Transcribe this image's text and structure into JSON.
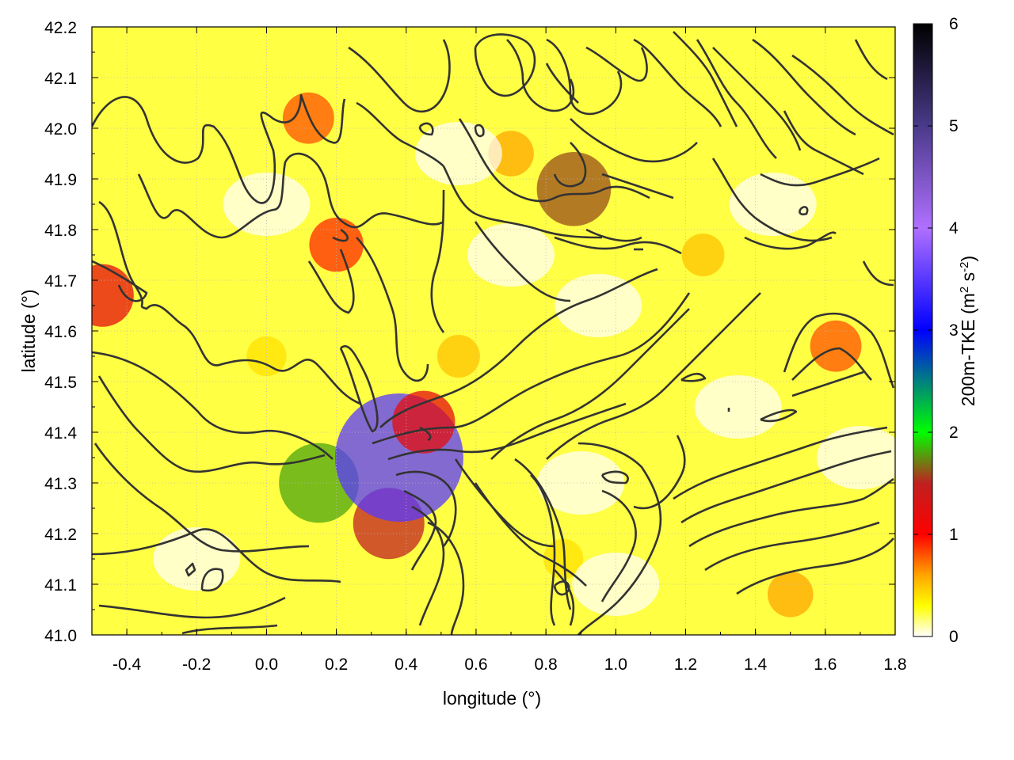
{
  "chart_data": {
    "type": "heatmap",
    "title": "",
    "xlabel": "longitude (°)",
    "ylabel": "latitude (°)",
    "colorbar_label": "200m-TKE (m² s⁻²)",
    "colorbar_label_parts": {
      "base": "200m-TKE (m",
      "sup1": "2",
      "mid": " s",
      "sup2": "-2",
      "end": ")"
    },
    "xlim": [
      -0.5,
      1.8
    ],
    "ylim": [
      41.0,
      42.2
    ],
    "clim": [
      0,
      6
    ],
    "x_ticks": [
      -0.4,
      -0.2,
      0.0,
      0.2,
      0.4,
      0.6,
      0.8,
      1.0,
      1.2,
      1.4,
      1.6,
      1.8
    ],
    "x_tick_labels": [
      "-0.4",
      "-0.2",
      "0.0",
      "0.2",
      "0.4",
      "0.6",
      "0.8",
      "1.0",
      "1.2",
      "1.4",
      "1.6",
      "1.8"
    ],
    "y_ticks": [
      41.0,
      41.1,
      41.2,
      41.3,
      41.4,
      41.5,
      41.6,
      41.7,
      41.8,
      41.9,
      42.0,
      42.1,
      42.2
    ],
    "y_tick_labels": [
      "41.0",
      "41.1",
      "41.2",
      "41.3",
      "41.4",
      "41.5",
      "41.6",
      "41.7",
      "41.8",
      "41.9",
      "42.0",
      "42.1",
      "42.2"
    ],
    "colorbar_ticks": [
      0,
      1,
      2,
      3,
      4,
      5,
      6
    ],
    "colorbar_tick_labels": [
      "0",
      "1",
      "2",
      "3",
      "4",
      "5",
      "6"
    ],
    "colormap": [
      {
        "v": 0.0,
        "color": "#ffffff"
      },
      {
        "v": 0.3,
        "color": "#ffff00"
      },
      {
        "v": 0.6,
        "color": "#ffa500"
      },
      {
        "v": 1.0,
        "color": "#ff0000"
      },
      {
        "v": 1.5,
        "color": "#c02020"
      },
      {
        "v": 2.0,
        "color": "#00ff00"
      },
      {
        "v": 3.0,
        "color": "#0000ff"
      },
      {
        "v": 4.0,
        "color": "#b070ff"
      },
      {
        "v": 5.0,
        "color": "#4a3a8a"
      },
      {
        "v": 6.0,
        "color": "#000000"
      }
    ],
    "grid": true,
    "contours": "topography (unlabeled black contour lines)",
    "field_hotspots": [
      {
        "lon": 0.15,
        "lat": 41.3,
        "value": 1.8
      },
      {
        "lon": 0.35,
        "lat": 41.22,
        "value": 1.5
      },
      {
        "lon": 0.38,
        "lat": 41.35,
        "value": 3.5
      },
      {
        "lon": 0.45,
        "lat": 41.42,
        "value": 1.2
      },
      {
        "lon": -0.47,
        "lat": 41.67,
        "value": 1.2
      },
      {
        "lon": 0.12,
        "lat": 42.02,
        "value": 0.8
      },
      {
        "lon": 1.25,
        "lat": 41.75,
        "value": 0.5
      },
      {
        "lon": 1.5,
        "lat": 41.08,
        "value": 0.6
      },
      {
        "lon": 0.55,
        "lat": 41.55,
        "value": 0.5
      },
      {
        "lon": 0.0,
        "lat": 41.55,
        "value": 0.4
      },
      {
        "lon": 1.63,
        "lat": 41.57,
        "value": 0.8
      },
      {
        "lon": 0.2,
        "lat": 41.77,
        "value": 0.9
      },
      {
        "lon": 0.88,
        "lat": 41.88,
        "value": 1.6
      },
      {
        "lon": 0.85,
        "lat": 41.15,
        "value": 0.4
      },
      {
        "lon": 0.7,
        "lat": 41.95,
        "value": 0.6
      }
    ]
  }
}
